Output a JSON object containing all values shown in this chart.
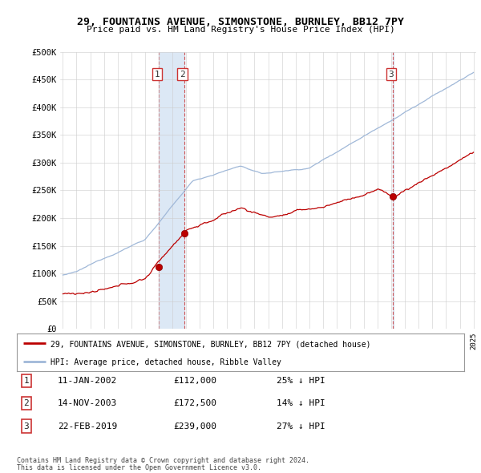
{
  "title": "29, FOUNTAINS AVENUE, SIMONSTONE, BURNLEY, BB12 7PY",
  "subtitle": "Price paid vs. HM Land Registry's House Price Index (HPI)",
  "ylim": [
    0,
    500000
  ],
  "yticks": [
    0,
    50000,
    100000,
    150000,
    200000,
    250000,
    300000,
    350000,
    400000,
    450000,
    500000
  ],
  "ytick_labels": [
    "£0",
    "£50K",
    "£100K",
    "£150K",
    "£200K",
    "£250K",
    "£300K",
    "£350K",
    "£400K",
    "£450K",
    "£500K"
  ],
  "sale_dates": [
    2002.03,
    2003.88,
    2019.13
  ],
  "sale_prices": [
    112000,
    172500,
    239000
  ],
  "sale_labels": [
    "1",
    "2",
    "3"
  ],
  "sale_info": [
    {
      "num": "1",
      "date": "11-JAN-2002",
      "price": "£112,000",
      "pct": "25%",
      "dir": "↓"
    },
    {
      "num": "2",
      "date": "14-NOV-2003",
      "price": "£172,500",
      "pct": "14%",
      "dir": "↓"
    },
    {
      "num": "3",
      "date": "22-FEB-2019",
      "price": "£239,000",
      "pct": "27%",
      "dir": "↓"
    }
  ],
  "hpi_color": "#a0b8d8",
  "price_color": "#bb0000",
  "vline_color": "#cc4444",
  "fill_color": "#dce8f5",
  "legend_property_label": "29, FOUNTAINS AVENUE, SIMONSTONE, BURNLEY, BB12 7PY (detached house)",
  "legend_hpi_label": "HPI: Average price, detached house, Ribble Valley",
  "footer1": "Contains HM Land Registry data © Crown copyright and database right 2024.",
  "footer2": "This data is licensed under the Open Government Licence v3.0.",
  "background_color": "#ffffff",
  "grid_color": "#cccccc"
}
